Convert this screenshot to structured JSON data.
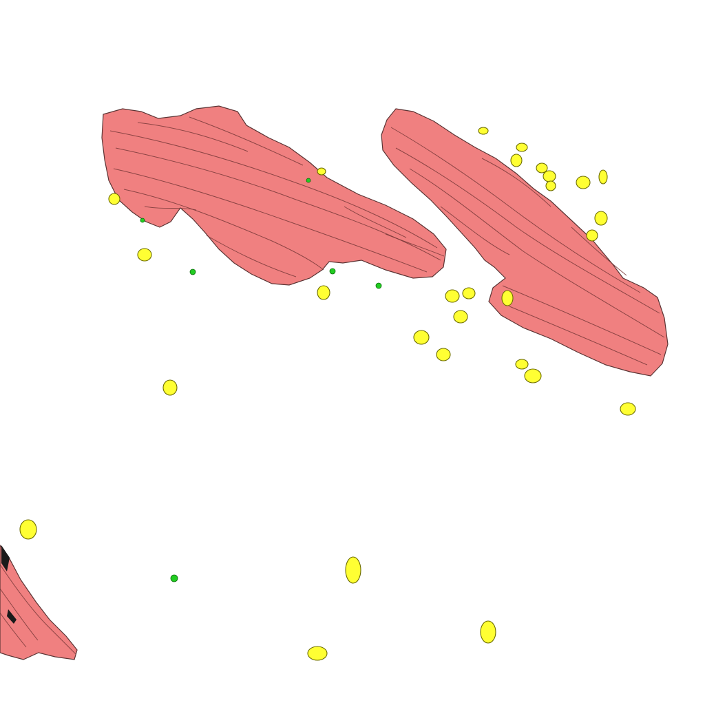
{
  "scene": {
    "background": "#ffffff",
    "objects": [
      {
        "name": "muscle-fiber-bundle-left",
        "kind": "fiber-bundle",
        "color": "#f08080"
      },
      {
        "name": "muscle-fiber-bundle-right",
        "kind": "fiber-bundle",
        "color": "#f08080"
      },
      {
        "name": "muscle-fiber-fragment-bottom-left",
        "kind": "fiber-bundle",
        "color": "#f08080"
      },
      {
        "name": "yellow-cell-nuclei",
        "kind": "blob-group",
        "color": "#ffff33"
      },
      {
        "name": "green-particles",
        "kind": "dot-group",
        "color": "#22cc22"
      }
    ]
  }
}
